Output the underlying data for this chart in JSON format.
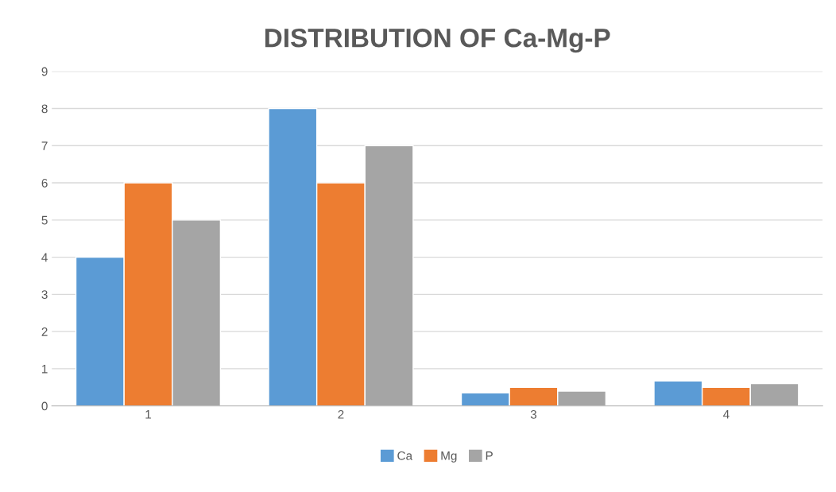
{
  "chart_data": {
    "type": "bar",
    "title": "DISTRIBUTION OF Ca-Mg-P",
    "categories": [
      "1",
      "2",
      "3",
      "4"
    ],
    "series": [
      {
        "name": "Ca",
        "color": "#5b9bd5",
        "values": [
          4,
          8,
          0.35,
          0.67
        ]
      },
      {
        "name": "Mg",
        "color": "#ed7d31",
        "values": [
          6,
          6,
          0.5,
          0.5
        ]
      },
      {
        "name": "P",
        "color": "#a5a5a5",
        "values": [
          5,
          7,
          0.4,
          0.6
        ]
      }
    ],
    "ylim": [
      0,
      9
    ],
    "yticks": [
      0,
      1,
      2,
      3,
      4,
      5,
      6,
      7,
      8,
      9
    ],
    "grid": "y",
    "legend": "bottom"
  }
}
